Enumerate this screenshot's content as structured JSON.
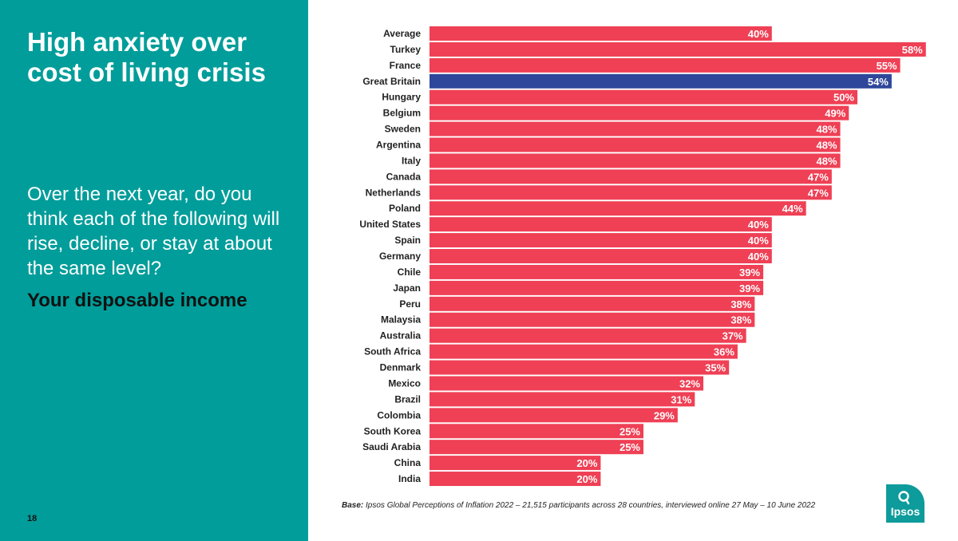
{
  "sidebar": {
    "title": "High anxiety over cost of living crisis",
    "question": "Over the next year, do you think each of the following will rise, decline, or stay at about the same level?",
    "subject": "Your disposable income",
    "page_number": "18"
  },
  "footer": {
    "base_label": "Base:",
    "base_text": "Ipsos Global Perceptions of Inflation 2022 – 21,515 participants across 28 countries, interviewed online 27 May – 10 June 2022"
  },
  "logo": {
    "text": "Ipsos",
    "icon": "ipsos-logo-icon"
  },
  "colors": {
    "panel": "#009d9a",
    "bar_default": "#ef4055",
    "bar_highlight": "#2e479b",
    "logo": "#0d9b9b"
  },
  "chart_data": {
    "type": "bar",
    "orientation": "horizontal",
    "title": "",
    "xlabel": "",
    "ylabel": "",
    "xlim": [
      0,
      58
    ],
    "grid": false,
    "highlight": "Great Britain",
    "categories": [
      "Average",
      "Turkey",
      "France",
      "Great Britain",
      "Hungary",
      "Belgium",
      "Sweden",
      "Argentina",
      "Italy",
      "Canada",
      "Netherlands",
      "Poland",
      "United States",
      "Spain",
      "Germany",
      "Chile",
      "Japan",
      "Peru",
      "Malaysia",
      "Australia",
      "South Africa",
      "Denmark",
      "Mexico",
      "Brazil",
      "Colombia",
      "South Korea",
      "Saudi Arabia",
      "China",
      "India"
    ],
    "values": [
      40,
      58,
      55,
      54,
      50,
      49,
      48,
      48,
      48,
      47,
      47,
      44,
      40,
      40,
      40,
      39,
      39,
      38,
      38,
      37,
      36,
      35,
      32,
      31,
      29,
      25,
      25,
      20,
      20
    ],
    "labels": [
      "40%",
      "58%",
      "55%",
      "54%",
      "50%",
      "49%",
      "48%",
      "48%",
      "48%",
      "47%",
      "47%",
      "44%",
      "40%",
      "40%",
      "40%",
      "39%",
      "39%",
      "38%",
      "38%",
      "37%",
      "36%",
      "35%",
      "32%",
      "31%",
      "29%",
      "25%",
      "25%",
      "20%",
      "20%"
    ]
  }
}
